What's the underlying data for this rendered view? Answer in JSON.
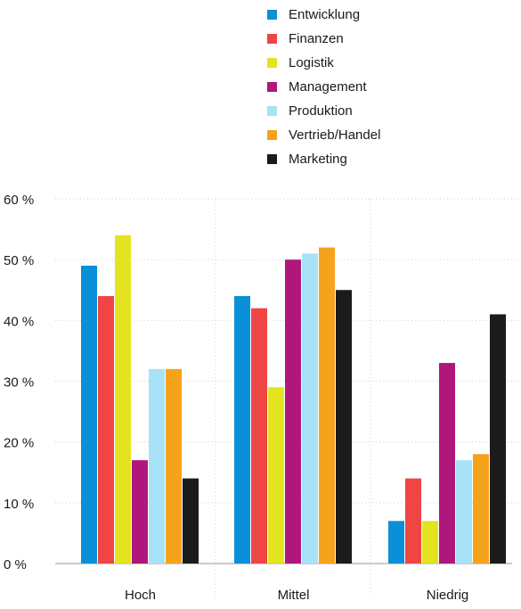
{
  "chart_data": {
    "type": "bar",
    "title": "",
    "xlabel": "",
    "ylabel": "",
    "categories": [
      "Hoch",
      "Mittel",
      "Niedrig"
    ],
    "ylim": [
      0,
      60
    ],
    "yticks": [
      0,
      10,
      20,
      30,
      40,
      50,
      60
    ],
    "ytick_labels": [
      "0 %",
      "10 %",
      "20 %",
      "30 %",
      "40 %",
      "50 %",
      "60 %"
    ],
    "grid": true,
    "legend_position": "top",
    "series": [
      {
        "name": "Entwicklung",
        "color": "#0a8fd9",
        "values": [
          49,
          44,
          7
        ]
      },
      {
        "name": "Finanzen",
        "color": "#ef4545",
        "values": [
          44,
          42,
          14
        ]
      },
      {
        "name": "Logistik",
        "color": "#e4e320",
        "values": [
          54,
          29,
          7
        ]
      },
      {
        "name": "Management",
        "color": "#b0177c",
        "values": [
          17,
          50,
          33
        ]
      },
      {
        "name": "Produktion",
        "color": "#a8e2f7",
        "values": [
          32,
          51,
          17
        ]
      },
      {
        "name": "Vertrieb/Handel",
        "color": "#f7a21b",
        "values": [
          32,
          52,
          18
        ]
      },
      {
        "name": "Marketing",
        "color": "#1b1b1b",
        "values": [
          14,
          45,
          41
        ]
      }
    ]
  }
}
